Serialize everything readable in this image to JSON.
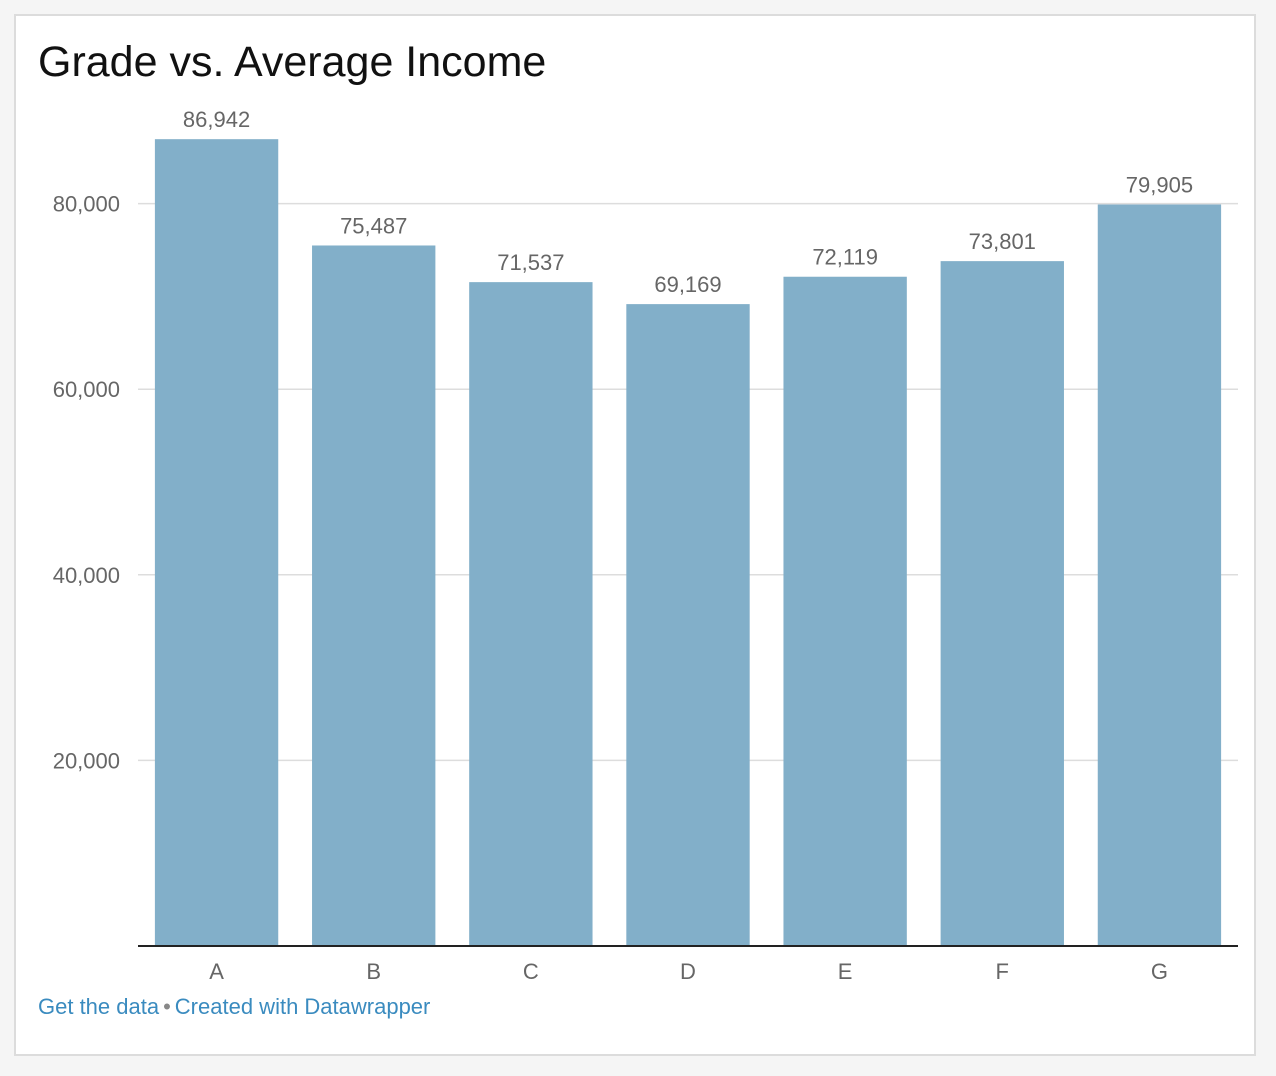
{
  "chart_data": {
    "type": "bar",
    "title": "Grade vs. Average Income",
    "xlabel": "",
    "ylabel": "",
    "categories": [
      "A",
      "B",
      "C",
      "D",
      "E",
      "F",
      "G"
    ],
    "values": [
      86942,
      75487,
      71537,
      69169,
      72119,
      73801,
      79905
    ],
    "value_labels": [
      "86,942",
      "75,487",
      "71,537",
      "69,169",
      "72,119",
      "73,801",
      "79,905"
    ],
    "ylim": [
      0,
      87500
    ],
    "yticks": [
      20000,
      40000,
      60000,
      80000
    ],
    "ytick_labels": [
      "20,000",
      "40,000",
      "60,000",
      "80,000"
    ],
    "grid": true,
    "legend": "none",
    "bar_color": "#82afc9"
  },
  "footer": {
    "get_data_label": "Get the data",
    "separator": "•",
    "created_with_label": "Created with Datawrapper"
  }
}
